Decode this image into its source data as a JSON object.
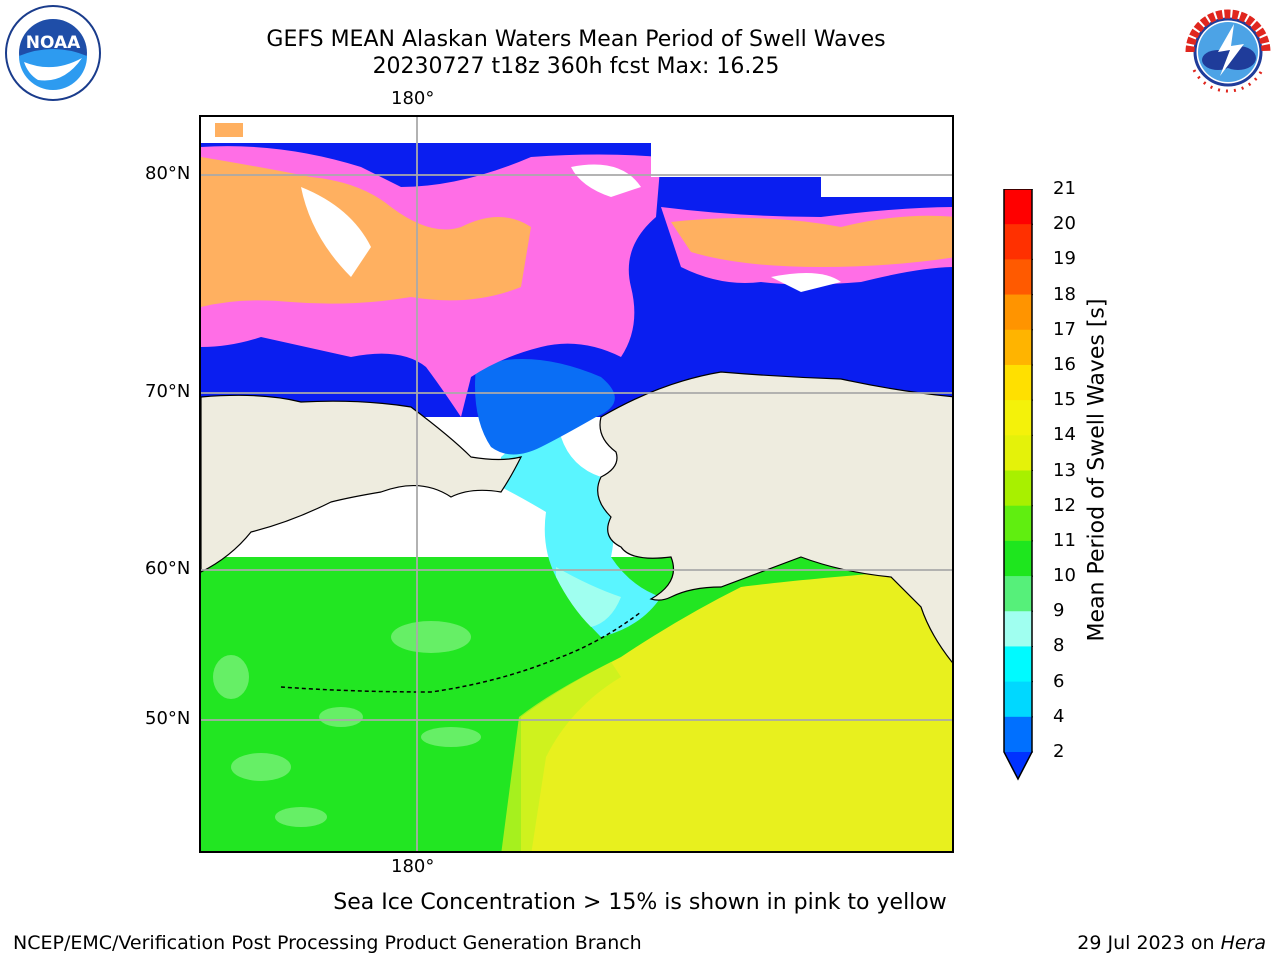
{
  "header": {
    "title_line1": "GEFS MEAN Alaskan Waters Mean Period of Swell Waves",
    "title_line2": "20230727 t18z 360h fcst   Max: 16.25"
  },
  "logos": {
    "left_name": "NOAA",
    "right_name": "NATIONAL WEATHER SERVICE"
  },
  "map": {
    "lon_labels": [
      "180°",
      "180°"
    ],
    "lat_labels": [
      "80°N",
      "70°N",
      "60°N",
      "50°N"
    ],
    "colors": {
      "land": "#EEECDF",
      "ocean_green": "#22E622",
      "ocean_lightgreen": "#6EF06E",
      "ocean_yellowgreen": "#C8F21E",
      "ocean_yellow": "#E8F01E",
      "ice_pink": "#FF6EE6",
      "ice_orange": "#FFB060",
      "deep_blue": "#0A1EF0",
      "mid_blue": "#0A6EF5",
      "cyan": "#5AF5FF"
    }
  },
  "colorbar": {
    "label": "Mean Period of Swell Waves [s]",
    "ticks": [
      "21",
      "20",
      "19",
      "18",
      "17",
      "16",
      "15",
      "14",
      "13",
      "12",
      "11",
      "10",
      "9",
      "8",
      "6",
      "4",
      "2"
    ],
    "segment_colors": [
      "#FF0000",
      "#FF3000",
      "#FF5A00",
      "#FF7800",
      "#FF9400",
      "#FFB400",
      "#FFE000",
      "#F4F20A",
      "#E4F20A",
      "#CCF500",
      "#A8F000",
      "#60EE10",
      "#1EE61E",
      "#56F07A",
      "#A0FFF0",
      "#56FFFF",
      "#00FAFF",
      "#00D8FF",
      "#0070FF",
      "#0032FF"
    ]
  },
  "note": "Sea Ice Concentration > 15% is shown in pink to yellow",
  "footer": {
    "left": "NCEP/EMC/Verification Post Processing Product Generation Branch",
    "date": "29 Jul 2023 on ",
    "machine": "Hera"
  }
}
